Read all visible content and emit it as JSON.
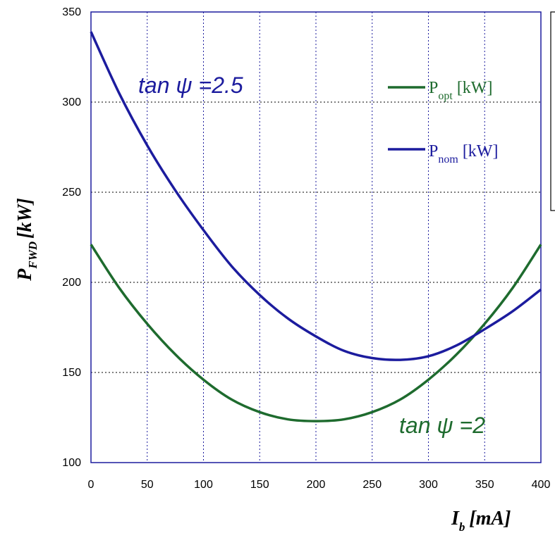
{
  "chart_data": {
    "type": "line",
    "xlabel": {
      "main": "I",
      "sub": "b",
      "unit": "[mA]"
    },
    "ylabel": {
      "main": "P",
      "sub": "FWD",
      "unit": "[kW]"
    },
    "xlim": [
      0,
      400
    ],
    "ylim": [
      100,
      350
    ],
    "x_ticks": [
      0,
      50,
      100,
      150,
      200,
      250,
      300,
      350,
      400
    ],
    "y_ticks": [
      100,
      150,
      200,
      250,
      300,
      350
    ],
    "grid": true,
    "legend_position": "top-right",
    "series": [
      {
        "name": "P_opt [kW]",
        "legend_main": "P",
        "legend_sub": "opt",
        "legend_unit": "[kW]",
        "color": "#1e6b2e",
        "x": [
          0,
          25,
          50,
          75,
          100,
          125,
          150,
          175,
          200,
          225,
          250,
          275,
          300,
          325,
          350,
          375,
          400
        ],
        "y": [
          221,
          197,
          177,
          160,
          146,
          135,
          128,
          124,
          123,
          124,
          128,
          135,
          146,
          160,
          177,
          197,
          221
        ]
      },
      {
        "name": "P_nom [kW]",
        "legend_main": "P",
        "legend_sub": "nom",
        "legend_unit": "[kW]",
        "color": "#1c1c9e",
        "x": [
          0,
          25,
          50,
          75,
          100,
          125,
          150,
          175,
          200,
          225,
          250,
          275,
          300,
          325,
          350,
          375,
          400
        ],
        "y": [
          339,
          305,
          276,
          251,
          229,
          209,
          193,
          180,
          170,
          162,
          158,
          157,
          159,
          165,
          174,
          184,
          196
        ]
      }
    ],
    "annotations": [
      {
        "text": "tan ψ =2.5",
        "color": "#1c1c9e"
      },
      {
        "text": "tan ψ =2",
        "color": "#1e6b2e"
      }
    ]
  }
}
